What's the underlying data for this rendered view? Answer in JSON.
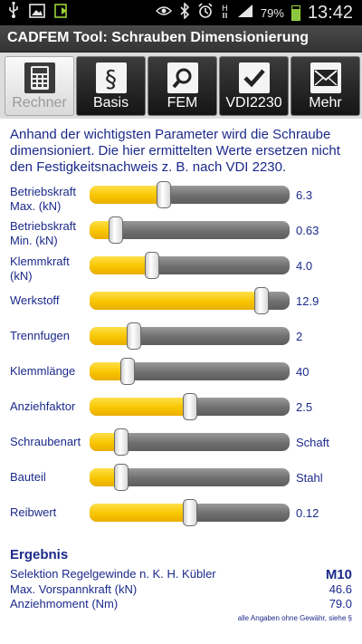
{
  "status_bar": {
    "battery_pct": "79%",
    "time": "13:42",
    "icons": [
      "usb-icon",
      "image-icon",
      "download-icon",
      "eye-icon",
      "bluetooth-icon",
      "alarm-icon",
      "hspa-icon",
      "signal-icon",
      "battery-icon"
    ]
  },
  "app": {
    "title": "CADFEM Tool: Schrauben Dimensionierung"
  },
  "tabs": [
    {
      "label": "Rechner",
      "icon": "calculator-icon",
      "active": true
    },
    {
      "label": "Basis",
      "icon": "paragraph-icon",
      "active": false
    },
    {
      "label": "FEM",
      "icon": "magnifier-icon",
      "active": false
    },
    {
      "label": "VDI2230",
      "icon": "checkmark-icon",
      "active": false
    },
    {
      "label": "Mehr",
      "icon": "envelope-icon",
      "active": false
    }
  ],
  "intro": "Anhand der wichtigsten Parameter wird die Schraube dimensioniert. Die hier ermittelten Werte ersetzen nicht den Festigkeitsnachweis z. B. nach VDI 2230.",
  "params": [
    {
      "label_line1": "Betriebskraft",
      "label_line2": "Max. (kN)",
      "value": "6.3",
      "level": 0.37
    },
    {
      "label_line1": "Betriebskraft",
      "label_line2": "Min. (kN)",
      "value": "0.63",
      "level": 0.13
    },
    {
      "label_line1": "Klemmkraft",
      "label_line2": "(kN)",
      "value": "4.0",
      "level": 0.31
    },
    {
      "label_line1": "Werkstoff",
      "label_line2": "",
      "value": "12.9",
      "level": 0.86
    },
    {
      "label_line1": "Trennfugen",
      "label_line2": "",
      "value": "2",
      "level": 0.22
    },
    {
      "label_line1": "Klemmlänge",
      "label_line2": "",
      "value": "40",
      "level": 0.19
    },
    {
      "label_line1": "Anziehfaktor",
      "label_line2": "",
      "value": "2.5",
      "level": 0.5
    },
    {
      "label_line1": "Schraubenart",
      "label_line2": "",
      "value": "Schaft",
      "level": 0.16
    },
    {
      "label_line1": "Bauteil",
      "label_line2": "",
      "value": "Stahl",
      "level": 0.16
    },
    {
      "label_line1": "Reibwert",
      "label_line2": "",
      "value": "0.12",
      "level": 0.5
    }
  ],
  "results": {
    "title": "Ergebnis",
    "rows": [
      {
        "label": "Selektion Regelgewinde n. K. H. Kübler",
        "value": "M10"
      },
      {
        "label": "Max. Vorspannkraft (kN)",
        "value": "46.6"
      },
      {
        "label": "Anziehmoment (Nm)",
        "value": "79.0"
      }
    ],
    "disclaimer": "alle Angaben ohne Gewähr, siehe §"
  },
  "colors": {
    "accent": "#F8C500",
    "text": "#1B2A8A",
    "track": "#6F6F6F"
  }
}
